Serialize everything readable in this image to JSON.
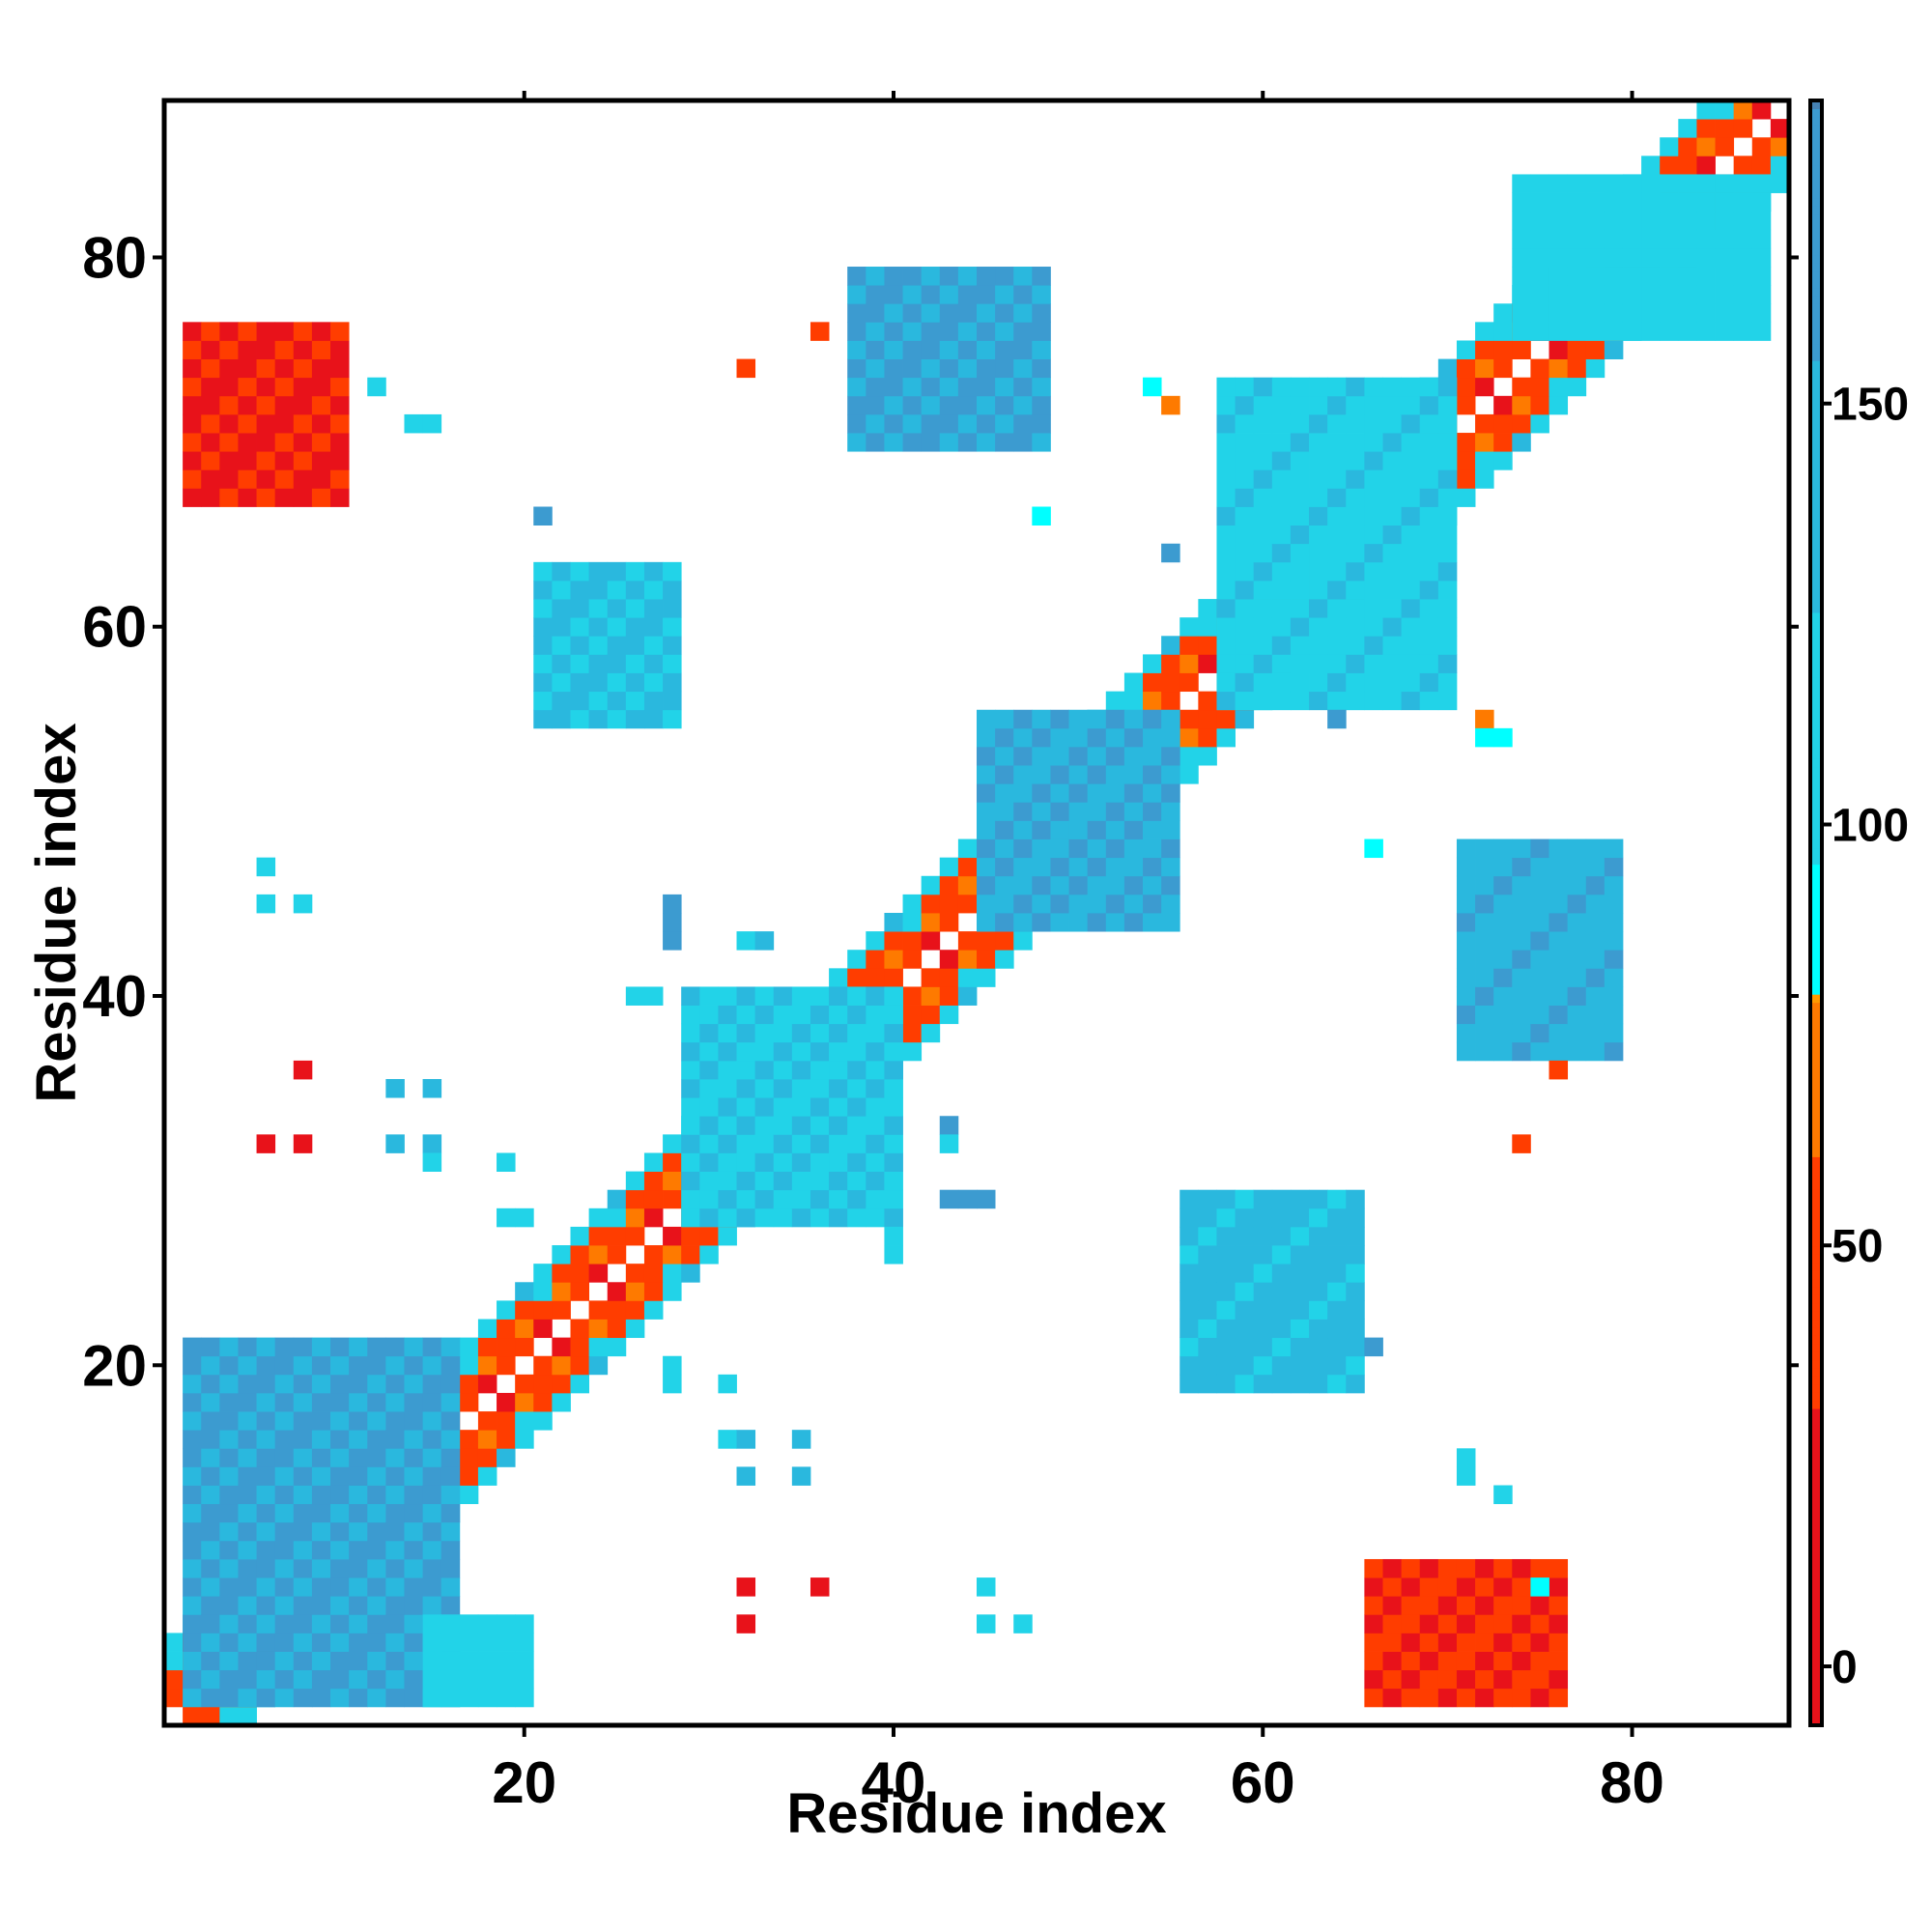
{
  "chart_data": {
    "type": "heatmap",
    "title": "",
    "xlabel": "Residue index",
    "ylabel": "Residue index",
    "xlim": [
      0.5,
      88.5
    ],
    "ylim": [
      0.5,
      88.5
    ],
    "x_ticks": [
      20,
      40,
      60,
      80
    ],
    "y_ticks": [
      20,
      40,
      60,
      80
    ],
    "grid": false,
    "value_range": [
      -7,
      186
    ],
    "colorbar": {
      "ticks": [
        0,
        50,
        100,
        150
      ],
      "stops": [
        {
          "value": -7,
          "color": "#e8121a"
        },
        {
          "value": 30,
          "color": "#ff3d00"
        },
        {
          "value": 60,
          "color": "#fe7a00"
        },
        {
          "value": 78,
          "color": "#ff9a00"
        },
        {
          "value": 79,
          "color": "#00ffff"
        },
        {
          "value": 95,
          "color": "#22d3e8"
        },
        {
          "value": 125,
          "color": "#2ab8de"
        },
        {
          "value": 155,
          "color": "#3c9bd0"
        },
        {
          "value": 185,
          "color": "#4682b4"
        },
        {
          "value": 186,
          "color": "#ffffff"
        }
      ]
    },
    "diagonal_band": {
      "start": 1,
      "end": 88,
      "offsets": [
        1,
        2,
        3,
        4
      ]
    },
    "regions": [
      {
        "x": [
          2,
          10
        ],
        "y": [
          67,
          76
        ],
        "value": 25
      },
      {
        "x": [
          2,
          16
        ],
        "y": [
          2,
          21
        ],
        "value": 160
      },
      {
        "x": [
          15,
          20
        ],
        "y": [
          2,
          6
        ],
        "value": 110
      },
      {
        "x": [
          21,
          28
        ],
        "y": [
          55,
          63
        ],
        "value": 130
      },
      {
        "x": [
          38,
          48
        ],
        "y": [
          70,
          79
        ],
        "value": 155
      },
      {
        "x": [
          45,
          55
        ],
        "y": [
          44,
          55
        ],
        "value": 150
      },
      {
        "x": [
          56,
          65
        ],
        "y": [
          19,
          29
        ],
        "value": 135
      },
      {
        "x": [
          66,
          76
        ],
        "y": [
          2,
          9
        ],
        "value": 30
      },
      {
        "x": [
          71,
          79
        ],
        "y": [
          37,
          48
        ],
        "value": 145
      },
      {
        "x": [
          29,
          40
        ],
        "y": [
          28,
          40
        ],
        "value": 120
      },
      {
        "x": [
          58,
          70
        ],
        "y": [
          56,
          73
        ],
        "value": 115
      },
      {
        "x": [
          74,
          87
        ],
        "y": [
          76,
          84
        ],
        "value": 110
      }
    ],
    "points": [
      {
        "x": 6,
        "y": 47,
        "value": 100
      },
      {
        "x": 6,
        "y": 45,
        "value": 100
      },
      {
        "x": 8,
        "y": 45,
        "value": 100
      },
      {
        "x": 8,
        "y": 36,
        "value": -5
      },
      {
        "x": 6,
        "y": 32,
        "value": -5
      },
      {
        "x": 8,
        "y": 32,
        "value": -5
      },
      {
        "x": 13,
        "y": 35,
        "value": 150
      },
      {
        "x": 15,
        "y": 35,
        "value": 150
      },
      {
        "x": 13,
        "y": 32,
        "value": 150
      },
      {
        "x": 15,
        "y": 32,
        "value": 140
      },
      {
        "x": 15,
        "y": 31,
        "value": 100
      },
      {
        "x": 19,
        "y": 31,
        "value": 110
      },
      {
        "x": 19,
        "y": 28,
        "value": 100
      },
      {
        "x": 20,
        "y": 28,
        "value": 100
      },
      {
        "x": 12,
        "y": 73,
        "value": 100
      },
      {
        "x": 14,
        "y": 71,
        "value": 110
      },
      {
        "x": 15,
        "y": 71,
        "value": 110
      },
      {
        "x": 21,
        "y": 66,
        "value": 160
      },
      {
        "x": 32,
        "y": 74,
        "value": 45
      },
      {
        "x": 36,
        "y": 76,
        "value": 45
      },
      {
        "x": 48,
        "y": 66,
        "value": 90
      },
      {
        "x": 55,
        "y": 64,
        "value": 160
      },
      {
        "x": 54,
        "y": 73,
        "value": 90
      },
      {
        "x": 55,
        "y": 72,
        "value": 70
      },
      {
        "x": 28,
        "y": 45,
        "value": 160
      },
      {
        "x": 28,
        "y": 44,
        "value": 160
      },
      {
        "x": 28,
        "y": 43,
        "value": 160
      },
      {
        "x": 32,
        "y": 43,
        "value": 110
      },
      {
        "x": 33,
        "y": 43,
        "value": 150
      },
      {
        "x": 26,
        "y": 40,
        "value": 120
      },
      {
        "x": 27,
        "y": 40,
        "value": 120
      },
      {
        "x": 28,
        "y": 20,
        "value": 100
      },
      {
        "x": 28,
        "y": 19,
        "value": 100
      },
      {
        "x": 31,
        "y": 19,
        "value": 110
      },
      {
        "x": 31,
        "y": 16,
        "value": 110
      },
      {
        "x": 32,
        "y": 16,
        "value": 130
      },
      {
        "x": 35,
        "y": 16,
        "value": 150
      },
      {
        "x": 32,
        "y": 14,
        "value": 150
      },
      {
        "x": 35,
        "y": 14,
        "value": 140
      },
      {
        "x": 32,
        "y": 8,
        "value": -5
      },
      {
        "x": 36,
        "y": 8,
        "value": 25
      },
      {
        "x": 32,
        "y": 6,
        "value": -5
      },
      {
        "x": 45,
        "y": 8,
        "value": 100
      },
      {
        "x": 45,
        "y": 6,
        "value": 100
      },
      {
        "x": 47,
        "y": 6,
        "value": 100
      },
      {
        "x": 40,
        "y": 27,
        "value": 120
      },
      {
        "x": 40,
        "y": 26,
        "value": 120
      },
      {
        "x": 43,
        "y": 33,
        "value": 160
      },
      {
        "x": 43,
        "y": 32,
        "value": 120
      },
      {
        "x": 43,
        "y": 29,
        "value": 160
      },
      {
        "x": 44,
        "y": 29,
        "value": 160
      },
      {
        "x": 45,
        "y": 29,
        "value": 160
      },
      {
        "x": 64,
        "y": 55,
        "value": 160
      },
      {
        "x": 66,
        "y": 48,
        "value": 90
      },
      {
        "x": 66,
        "y": 21,
        "value": 160
      },
      {
        "x": 72,
        "y": 55,
        "value": 70
      },
      {
        "x": 72,
        "y": 54,
        "value": 85
      },
      {
        "x": 73,
        "y": 54,
        "value": 85
      },
      {
        "x": 74,
        "y": 32,
        "value": 40
      },
      {
        "x": 76,
        "y": 36,
        "value": 40
      },
      {
        "x": 71,
        "y": 15,
        "value": 110
      },
      {
        "x": 71,
        "y": 14,
        "value": 110
      },
      {
        "x": 73,
        "y": 13,
        "value": 110
      },
      {
        "x": 75,
        "y": 8,
        "value": 90
      }
    ]
  }
}
